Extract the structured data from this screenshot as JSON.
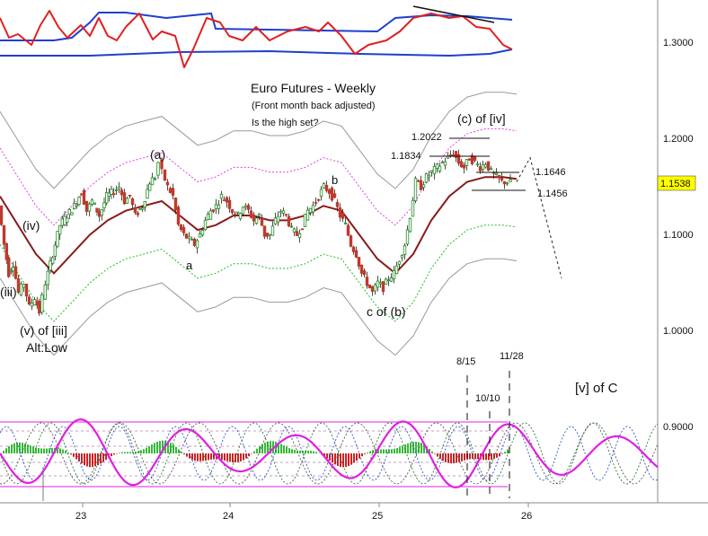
{
  "chart_data": {
    "type": "candlestick",
    "title": "Euro Futures - Weekly",
    "subtitle": "(Front month back adjusted)",
    "question": "Is the high set?",
    "x_ticks": [
      "23",
      "24",
      "25",
      "26"
    ],
    "y_ticks": [
      "1.3000",
      "1.2000",
      "1.1000",
      "1.0000",
      "0.9000"
    ],
    "current_price": "1.1538",
    "current_price_value": 1.1538,
    "ylim": [
      0.85,
      1.35
    ],
    "colors": {
      "up": "#1f8a1f",
      "down": "#c0392b",
      "ma": "#8b1a1a",
      "env_inner": "#e040e0",
      "env_outer": "#999999",
      "env_lower_inner": "#22bb22",
      "osc_red": "#e02020",
      "osc_blue": "#1f3fcf",
      "cycle": "#e020e0",
      "price_label_bg": "#ffff00"
    },
    "key_levels": [
      {
        "label": "1.2022",
        "value": 1.2022
      },
      {
        "label": "1.1834",
        "value": 1.1834
      },
      {
        "label": "1.1646",
        "value": 1.1646
      },
      {
        "label": "1.1456",
        "value": 1.1456
      }
    ],
    "wave_labels": [
      {
        "text": "(a)",
        "at": "2023.5",
        "price": 1.175
      },
      {
        "text": "a",
        "at": "2023.75",
        "price": 1.08
      },
      {
        "text": "b",
        "at": "2024.7",
        "price": 1.15
      },
      {
        "text": "c of (b)",
        "at": "2025.05",
        "price": 1.015
      },
      {
        "text": "(c) of [iv]",
        "at": "2025.6",
        "price": 1.22
      },
      {
        "text": "(iv)",
        "at": "2022.9",
        "price": 1.1
      },
      {
        "text": "(iii)",
        "at": "2022.5",
        "price": 1.04
      },
      {
        "text": "(v) of [iii]",
        "at": "2022.8",
        "price": 1.0
      },
      {
        "text": "Alt:Low",
        "at": "2022.8",
        "price": 0.98
      },
      {
        "text": "[v] of C",
        "at": "2026.3",
        "price": 0.935
      }
    ],
    "date_markers": [
      "8/15",
      "10/10",
      "11/28"
    ],
    "price_path": [
      [
        0,
        1.13
      ],
      [
        6,
        1.09
      ],
      [
        11,
        1.06
      ],
      [
        16,
        1.07
      ],
      [
        22,
        1.04
      ],
      [
        28,
        1.05
      ],
      [
        34,
        1.025
      ],
      [
        40,
        1.035
      ],
      [
        45,
        1.02
      ],
      [
        52,
        1.05
      ],
      [
        60,
        1.08
      ],
      [
        68,
        1.11
      ],
      [
        76,
        1.12
      ],
      [
        84,
        1.13
      ],
      [
        92,
        1.145
      ],
      [
        98,
        1.125
      ],
      [
        104,
        1.135
      ],
      [
        112,
        1.12
      ],
      [
        120,
        1.14
      ],
      [
        128,
        1.145
      ],
      [
        134,
        1.15
      ],
      [
        140,
        1.135
      ],
      [
        146,
        1.14
      ],
      [
        152,
        1.12
      ],
      [
        160,
        1.13
      ],
      [
        168,
        1.155
      ],
      [
        174,
        1.16
      ],
      [
        178,
        1.175
      ],
      [
        182,
        1.165
      ],
      [
        188,
        1.15
      ],
      [
        194,
        1.14
      ],
      [
        200,
        1.11
      ],
      [
        206,
        1.1
      ],
      [
        212,
        1.095
      ],
      [
        218,
        1.09
      ],
      [
        224,
        1.1
      ],
      [
        230,
        1.115
      ],
      [
        236,
        1.125
      ],
      [
        242,
        1.13
      ],
      [
        248,
        1.14
      ],
      [
        254,
        1.135
      ],
      [
        260,
        1.125
      ],
      [
        266,
        1.12
      ],
      [
        272,
        1.13
      ],
      [
        278,
        1.125
      ],
      [
        284,
        1.115
      ],
      [
        290,
        1.12
      ],
      [
        296,
        1.1
      ],
      [
        302,
        1.1
      ],
      [
        308,
        1.115
      ],
      [
        314,
        1.125
      ],
      [
        320,
        1.12
      ],
      [
        326,
        1.105
      ],
      [
        332,
        1.1
      ],
      [
        338,
        1.11
      ],
      [
        344,
        1.125
      ],
      [
        350,
        1.13
      ],
      [
        356,
        1.14
      ],
      [
        362,
        1.15
      ],
      [
        368,
        1.145
      ],
      [
        374,
        1.135
      ],
      [
        380,
        1.12
      ],
      [
        386,
        1.11
      ],
      [
        392,
        1.09
      ],
      [
        398,
        1.08
      ],
      [
        404,
        1.06
      ],
      [
        410,
        1.05
      ],
      [
        416,
        1.04
      ],
      [
        422,
        1.05
      ],
      [
        428,
        1.045
      ],
      [
        434,
        1.055
      ],
      [
        440,
        1.06
      ],
      [
        446,
        1.075
      ],
      [
        452,
        1.09
      ],
      [
        458,
        1.12
      ],
      [
        464,
        1.155
      ],
      [
        470,
        1.15
      ],
      [
        476,
        1.16
      ],
      [
        482,
        1.165
      ],
      [
        488,
        1.17
      ],
      [
        494,
        1.175
      ],
      [
        500,
        1.18
      ],
      [
        506,
        1.185
      ],
      [
        512,
        1.175
      ],
      [
        518,
        1.17
      ],
      [
        524,
        1.18
      ],
      [
        530,
        1.175
      ],
      [
        536,
        1.17
      ],
      [
        542,
        1.175
      ],
      [
        548,
        1.165
      ],
      [
        554,
        1.16
      ],
      [
        560,
        1.155
      ],
      [
        566,
        1.155
      ],
      [
        570,
        1.154
      ]
    ],
    "ma_path": [
      [
        0,
        1.14
      ],
      [
        20,
        1.11
      ],
      [
        40,
        1.08
      ],
      [
        60,
        1.06
      ],
      [
        80,
        1.08
      ],
      [
        100,
        1.1
      ],
      [
        120,
        1.115
      ],
      [
        140,
        1.125
      ],
      [
        160,
        1.13
      ],
      [
        180,
        1.135
      ],
      [
        200,
        1.12
      ],
      [
        220,
        1.105
      ],
      [
        240,
        1.11
      ],
      [
        260,
        1.12
      ],
      [
        280,
        1.12
      ],
      [
        300,
        1.115
      ],
      [
        320,
        1.115
      ],
      [
        340,
        1.12
      ],
      [
        360,
        1.13
      ],
      [
        380,
        1.125
      ],
      [
        400,
        1.1
      ],
      [
        420,
        1.075
      ],
      [
        440,
        1.06
      ],
      [
        460,
        1.08
      ],
      [
        480,
        1.115
      ],
      [
        500,
        1.14
      ],
      [
        520,
        1.155
      ],
      [
        540,
        1.16
      ],
      [
        560,
        1.16
      ],
      [
        575,
        1.158
      ]
    ],
    "projection_path": [
      [
        575,
        1.155
      ],
      [
        590,
        1.18
      ],
      [
        625,
        1.055
      ]
    ],
    "oscillator": {
      "red": [
        [
          0,
          20
        ],
        [
          10,
          42
        ],
        [
          20,
          38
        ],
        [
          35,
          50
        ],
        [
          45,
          28
        ],
        [
          55,
          12
        ],
        [
          65,
          30
        ],
        [
          75,
          42
        ],
        [
          90,
          28
        ],
        [
          100,
          40
        ],
        [
          110,
          20
        ],
        [
          120,
          40
        ],
        [
          130,
          45
        ],
        [
          140,
          30
        ],
        [
          155,
          15
        ],
        [
          170,
          44
        ],
        [
          180,
          35
        ],
        [
          195,
          40
        ],
        [
          205,
          75
        ],
        [
          215,
          55
        ],
        [
          230,
          20
        ],
        [
          245,
          25
        ],
        [
          255,
          40
        ],
        [
          270,
          45
        ],
        [
          285,
          30
        ],
        [
          300,
          45
        ],
        [
          320,
          35
        ],
        [
          340,
          30
        ],
        [
          355,
          35
        ],
        [
          365,
          25
        ],
        [
          380,
          40
        ],
        [
          395,
          60
        ],
        [
          410,
          50
        ],
        [
          430,
          45
        ],
        [
          445,
          35
        ],
        [
          460,
          20
        ],
        [
          480,
          15
        ],
        [
          500,
          20
        ],
        [
          515,
          18
        ],
        [
          530,
          30
        ],
        [
          545,
          32
        ],
        [
          560,
          50
        ],
        [
          570,
          55
        ]
      ],
      "blue_top": [
        [
          0,
          45
        ],
        [
          60,
          45
        ],
        [
          80,
          42
        ],
        [
          100,
          25
        ],
        [
          110,
          14
        ],
        [
          140,
          14
        ],
        [
          185,
          20
        ],
        [
          235,
          15
        ],
        [
          240,
          32
        ],
        [
          420,
          35
        ],
        [
          440,
          20
        ],
        [
          480,
          17
        ],
        [
          520,
          18
        ],
        [
          570,
          22
        ]
      ],
      "blue_bottom": [
        [
          0,
          62
        ],
        [
          100,
          62
        ],
        [
          200,
          58
        ],
        [
          300,
          57
        ],
        [
          400,
          60
        ],
        [
          500,
          62
        ],
        [
          545,
          60
        ],
        [
          570,
          55
        ]
      ],
      "trendline": [
        [
          460,
          7
        ],
        [
          550,
          25
        ]
      ]
    },
    "cycle_panel": {
      "time_markers": [
        {
          "label": "8/15",
          "x": 520
        },
        {
          "label": "10/10",
          "x": 545
        },
        {
          "label": "11/28",
          "x": 567
        }
      ]
    }
  }
}
